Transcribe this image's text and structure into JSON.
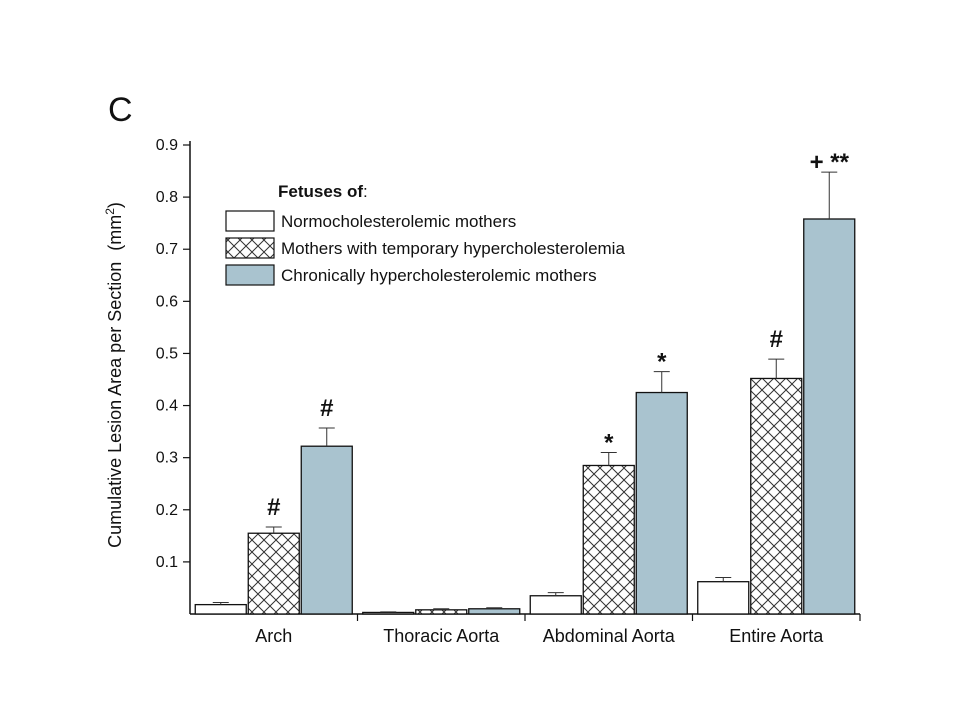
{
  "panel_label": "C",
  "chart_data": {
    "type": "bar",
    "categories": [
      "Arch",
      "Thoracic Aorta",
      "Abdominal Aorta",
      "Entire Aorta"
    ],
    "ylabel": "Cumulative Lesion Area per Section",
    "ylabel_unit_base": "(mm",
    "ylabel_unit_exp": "2",
    "ylabel_unit_close": ")",
    "ylim": [
      0,
      0.9
    ],
    "yticks": [
      "0.1",
      "0.2",
      "0.3",
      "0.4",
      "0.5",
      "0.6",
      "0.7",
      "0.8",
      "0.9"
    ],
    "legend": {
      "title_bold": "Fetuses of",
      "title_rest": ":",
      "placement": "top-left"
    },
    "series": [
      {
        "name": "Normocholesterolemic mothers",
        "fill": "#ffffff",
        "pattern": "none",
        "values": [
          0.018,
          0.003,
          0.035,
          0.062
        ],
        "errors": [
          0.004,
          0.001,
          0.006,
          0.008
        ],
        "annotations": [
          "",
          "",
          "",
          ""
        ]
      },
      {
        "name": "Mothers with temporary hypercholesterolemia",
        "fill": "#ffffff",
        "pattern": "crosshatch",
        "values": [
          0.155,
          0.008,
          0.285,
          0.452
        ],
        "errors": [
          0.012,
          0.002,
          0.025,
          0.037
        ],
        "annotations": [
          "#",
          "",
          "*",
          "#"
        ]
      },
      {
        "name": "Chronically hypercholesterolemic mothers",
        "fill": "#a9c3cf",
        "pattern": "none",
        "values": [
          0.322,
          0.01,
          0.425,
          0.758
        ],
        "errors": [
          0.035,
          0.002,
          0.04,
          0.09
        ],
        "annotations": [
          "#",
          "",
          "*",
          "+ **"
        ]
      }
    ]
  }
}
